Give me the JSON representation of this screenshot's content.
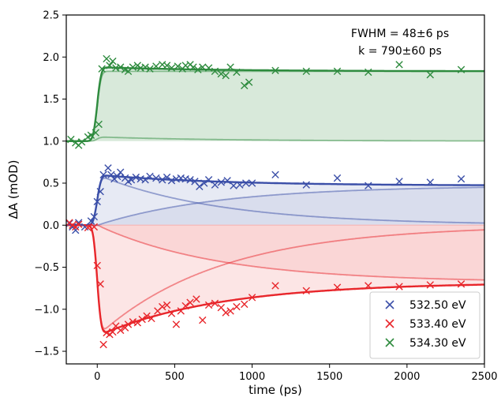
{
  "chart_data": {
    "type": "scatter",
    "title": "",
    "xlabel": "time (ps)",
    "ylabel": "ΔA (mOD)",
    "xlim": [
      -200,
      2500
    ],
    "ylim": [
      -1.65,
      2.5
    ],
    "xticks": [
      0,
      500,
      1000,
      1500,
      2000,
      2500
    ],
    "yticks": [
      -1.5,
      -1.0,
      -0.5,
      0.0,
      0.5,
      1.0,
      1.5,
      2.0,
      2.5
    ],
    "grid": false,
    "legend_position": "lower-right",
    "annotations": [
      "FWHM = 48±6 ps",
      "k = 790±60 ps"
    ],
    "series": [
      {
        "name": "534.30 eV",
        "color": "#2e8b3e",
        "baseline": 1.0,
        "points": [
          [
            -170,
            1.02
          ],
          [
            -140,
            0.98
          ],
          [
            -120,
            0.95
          ],
          [
            -100,
            0.99
          ],
          [
            -60,
            1.05
          ],
          [
            -40,
            1.07
          ],
          [
            -10,
            1.1
          ],
          [
            10,
            1.2
          ],
          [
            30,
            1.86
          ],
          [
            60,
            1.98
          ],
          [
            80,
            1.9
          ],
          [
            100,
            1.95
          ],
          [
            120,
            1.87
          ],
          [
            150,
            1.88
          ],
          [
            180,
            1.85
          ],
          [
            200,
            1.83
          ],
          [
            230,
            1.88
          ],
          [
            260,
            1.9
          ],
          [
            280,
            1.87
          ],
          [
            310,
            1.88
          ],
          [
            340,
            1.86
          ],
          [
            380,
            1.89
          ],
          [
            420,
            1.91
          ],
          [
            450,
            1.9
          ],
          [
            480,
            1.87
          ],
          [
            520,
            1.89
          ],
          [
            550,
            1.86
          ],
          [
            570,
            1.9
          ],
          [
            600,
            1.91
          ],
          [
            620,
            1.88
          ],
          [
            650,
            1.85
          ],
          [
            680,
            1.88
          ],
          [
            720,
            1.87
          ],
          [
            760,
            1.83
          ],
          [
            800,
            1.8
          ],
          [
            830,
            1.78
          ],
          [
            860,
            1.88
          ],
          [
            900,
            1.82
          ],
          [
            950,
            1.66
          ],
          [
            980,
            1.7
          ],
          [
            1150,
            1.84
          ],
          [
            1350,
            1.83
          ],
          [
            1550,
            1.83
          ],
          [
            1750,
            1.82
          ],
          [
            1950,
            1.91
          ],
          [
            2150,
            1.79
          ],
          [
            2350,
            1.85
          ]
        ],
        "fit": {
          "plateau": 0.88,
          "final": 0.83,
          "early_amp": 0.0
        }
      },
      {
        "name": "532.50 eV",
        "color": "#3b4fa8",
        "baseline": 0.0,
        "points": [
          [
            -180,
            0.02
          ],
          [
            -160,
            -0.02
          ],
          [
            -140,
            -0.06
          ],
          [
            -120,
            0.03
          ],
          [
            -80,
            -0.02
          ],
          [
            -40,
            0.05
          ],
          [
            -20,
            0.1
          ],
          [
            0,
            0.28
          ],
          [
            20,
            0.4
          ],
          [
            40,
            0.6
          ],
          [
            70,
            0.68
          ],
          [
            90,
            0.6
          ],
          [
            110,
            0.55
          ],
          [
            130,
            0.58
          ],
          [
            150,
            0.63
          ],
          [
            180,
            0.56
          ],
          [
            200,
            0.52
          ],
          [
            220,
            0.54
          ],
          [
            250,
            0.57
          ],
          [
            280,
            0.55
          ],
          [
            310,
            0.54
          ],
          [
            340,
            0.58
          ],
          [
            380,
            0.56
          ],
          [
            420,
            0.54
          ],
          [
            450,
            0.57
          ],
          [
            480,
            0.53
          ],
          [
            510,
            0.55
          ],
          [
            540,
            0.56
          ],
          [
            570,
            0.55
          ],
          [
            600,
            0.54
          ],
          [
            630,
            0.52
          ],
          [
            660,
            0.46
          ],
          [
            690,
            0.5
          ],
          [
            720,
            0.54
          ],
          [
            760,
            0.48
          ],
          [
            800,
            0.51
          ],
          [
            840,
            0.53
          ],
          [
            880,
            0.47
          ],
          [
            920,
            0.48
          ],
          [
            960,
            0.5
          ],
          [
            1000,
            0.5
          ],
          [
            1150,
            0.6
          ],
          [
            1350,
            0.48
          ],
          [
            1550,
            0.56
          ],
          [
            1750,
            0.47
          ],
          [
            1950,
            0.52
          ],
          [
            2150,
            0.51
          ],
          [
            2350,
            0.55
          ]
        ],
        "fit": {
          "plateau": 0.6,
          "final": 0.47,
          "early_amp": 0.6
        }
      },
      {
        "name": "533.40 eV",
        "color": "#e8262b",
        "baseline": 0.0,
        "points": [
          [
            -180,
            0.03
          ],
          [
            -160,
            0.0
          ],
          [
            -140,
            -0.02
          ],
          [
            -120,
            0.01
          ],
          [
            -60,
            -0.03
          ],
          [
            -20,
            -0.02
          ],
          [
            0,
            -0.48
          ],
          [
            20,
            -0.7
          ],
          [
            40,
            -1.42
          ],
          [
            60,
            -1.28
          ],
          [
            80,
            -1.3
          ],
          [
            100,
            -1.27
          ],
          [
            120,
            -1.2
          ],
          [
            150,
            -1.25
          ],
          [
            180,
            -1.22
          ],
          [
            200,
            -1.18
          ],
          [
            230,
            -1.15
          ],
          [
            260,
            -1.16
          ],
          [
            290,
            -1.12
          ],
          [
            320,
            -1.08
          ],
          [
            350,
            -1.11
          ],
          [
            390,
            -1.02
          ],
          [
            420,
            -0.97
          ],
          [
            450,
            -0.95
          ],
          [
            480,
            -1.05
          ],
          [
            510,
            -1.18
          ],
          [
            540,
            -1.02
          ],
          [
            570,
            -0.96
          ],
          [
            600,
            -0.92
          ],
          [
            640,
            -0.88
          ],
          [
            680,
            -1.13
          ],
          [
            720,
            -0.95
          ],
          [
            760,
            -0.93
          ],
          [
            800,
            -0.98
          ],
          [
            830,
            -1.04
          ],
          [
            860,
            -1.02
          ],
          [
            900,
            -0.97
          ],
          [
            950,
            -0.94
          ],
          [
            1000,
            -0.86
          ],
          [
            1150,
            -0.72
          ],
          [
            1350,
            -0.78
          ],
          [
            1550,
            -0.74
          ],
          [
            1750,
            -0.72
          ],
          [
            1950,
            -0.73
          ],
          [
            2150,
            -0.71
          ],
          [
            2350,
            -0.7
          ]
        ],
        "fit": {
          "plateau": -1.32,
          "final": -0.68,
          "early_amp": -1.32
        }
      }
    ],
    "legend": [
      {
        "label": "532.50 eV",
        "color": "#3b4fa8",
        "marker": "x"
      },
      {
        "label": "533.40 eV",
        "color": "#e8262b",
        "marker": "x"
      },
      {
        "label": "534.30 eV",
        "color": "#2e8b3e",
        "marker": "x"
      }
    ]
  }
}
